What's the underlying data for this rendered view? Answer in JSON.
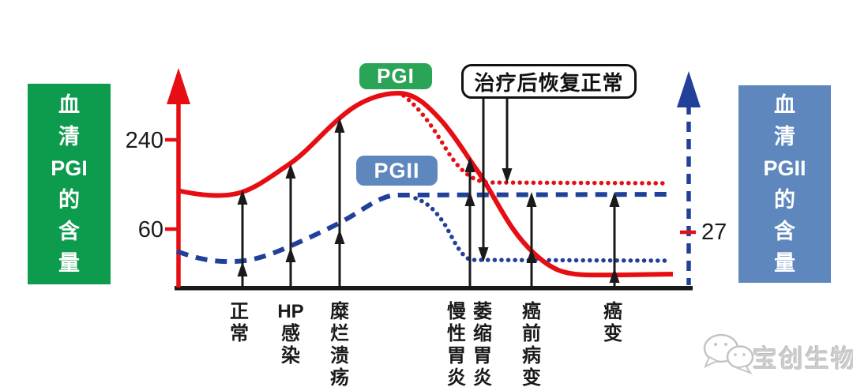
{
  "left_panel": {
    "label": "血清PGI的含量",
    "lines": [
      "血",
      "清",
      "PGI",
      "的",
      "含",
      "量"
    ],
    "color": "#0d9b4d"
  },
  "right_panel": {
    "label": "血清PGII的含量",
    "lines": [
      "血",
      "清",
      "PGII",
      "的",
      "含",
      "量"
    ],
    "color": "#5d87bd"
  },
  "badges": {
    "pgi_label": "PGI",
    "pgii_label": "PGII"
  },
  "annotation": {
    "recovery_label": "治疗后恢复正常"
  },
  "watermark": {
    "text": "宝创生物",
    "icon": "wechat-bubbles-icon"
  },
  "colors": {
    "pgi_red": "#e60e13",
    "pgii_navy": "#20409a",
    "green": "#0d9b4d",
    "steel_blue": "#5d87bd",
    "axis_black": "#1a1a1a"
  },
  "chart_data": {
    "type": "line",
    "title": "",
    "xlabel": "",
    "ylabel_left": "血清PGI的含量",
    "ylabel_right": "血清PGII的含量",
    "categories": [
      "正常",
      "HP感染",
      "糜烂溃疡",
      "慢性胃炎",
      "萎缩胃炎",
      "癌前病变",
      "癌变"
    ],
    "categories_display": [
      {
        "chars": [
          "正",
          "常"
        ],
        "x": 303
      },
      {
        "chars": [
          "HP",
          "感",
          "染"
        ],
        "x": 368
      },
      {
        "chars": [
          "糜",
          "烂",
          "溃",
          "疡"
        ],
        "x": 430
      },
      {
        "chars": [
          "慢",
          "性",
          "胃",
          "炎"
        ],
        "x": 578
      },
      {
        "chars": [
          "萎",
          "缩",
          "胃",
          "炎"
        ],
        "x": 611
      },
      {
        "chars": [
          "癌",
          "前",
          "病",
          "变"
        ],
        "x": 673
      },
      {
        "chars": [
          "癌",
          "变"
        ],
        "x": 776
      }
    ],
    "left_axis": {
      "ticks": [
        "240",
        "60"
      ],
      "color": "red",
      "arrow": "up"
    },
    "right_axis": {
      "ticks": [
        "27"
      ],
      "color": "navy-dashed",
      "arrow": "up"
    },
    "series": [
      {
        "name": "PGI",
        "style": "solid red",
        "values_approx": [
          135,
          190,
          280,
          200,
          110,
          10,
          5
        ],
        "peak_value_approx": 335,
        "peak_between": [
          "糜烂溃疡",
          "慢性胃炎"
        ]
      },
      {
        "name": "PGII",
        "style": "dashed navy",
        "values_approx": [
          15,
          18,
          30,
          55,
          60,
          60,
          60
        ]
      },
      {
        "name": "PGI治疗后恢复正常线",
        "style": "dotted red",
        "recovered_level_approx": 150,
        "starts_after": "糜烂溃疡"
      },
      {
        "name": "PGII治疗后恢复正常线",
        "style": "dotted navy",
        "recovered_level_approx": 15,
        "starts_after": "慢性胃炎"
      }
    ],
    "legend": [
      {
        "label": "PGI",
        "color": "#2aa457"
      },
      {
        "label": "PGII",
        "color": "#5d87bd"
      }
    ],
    "grid": false,
    "estimation": "schematic figure; numeric values estimated from 240/60 (left) and 27 (right) axis ticks"
  }
}
